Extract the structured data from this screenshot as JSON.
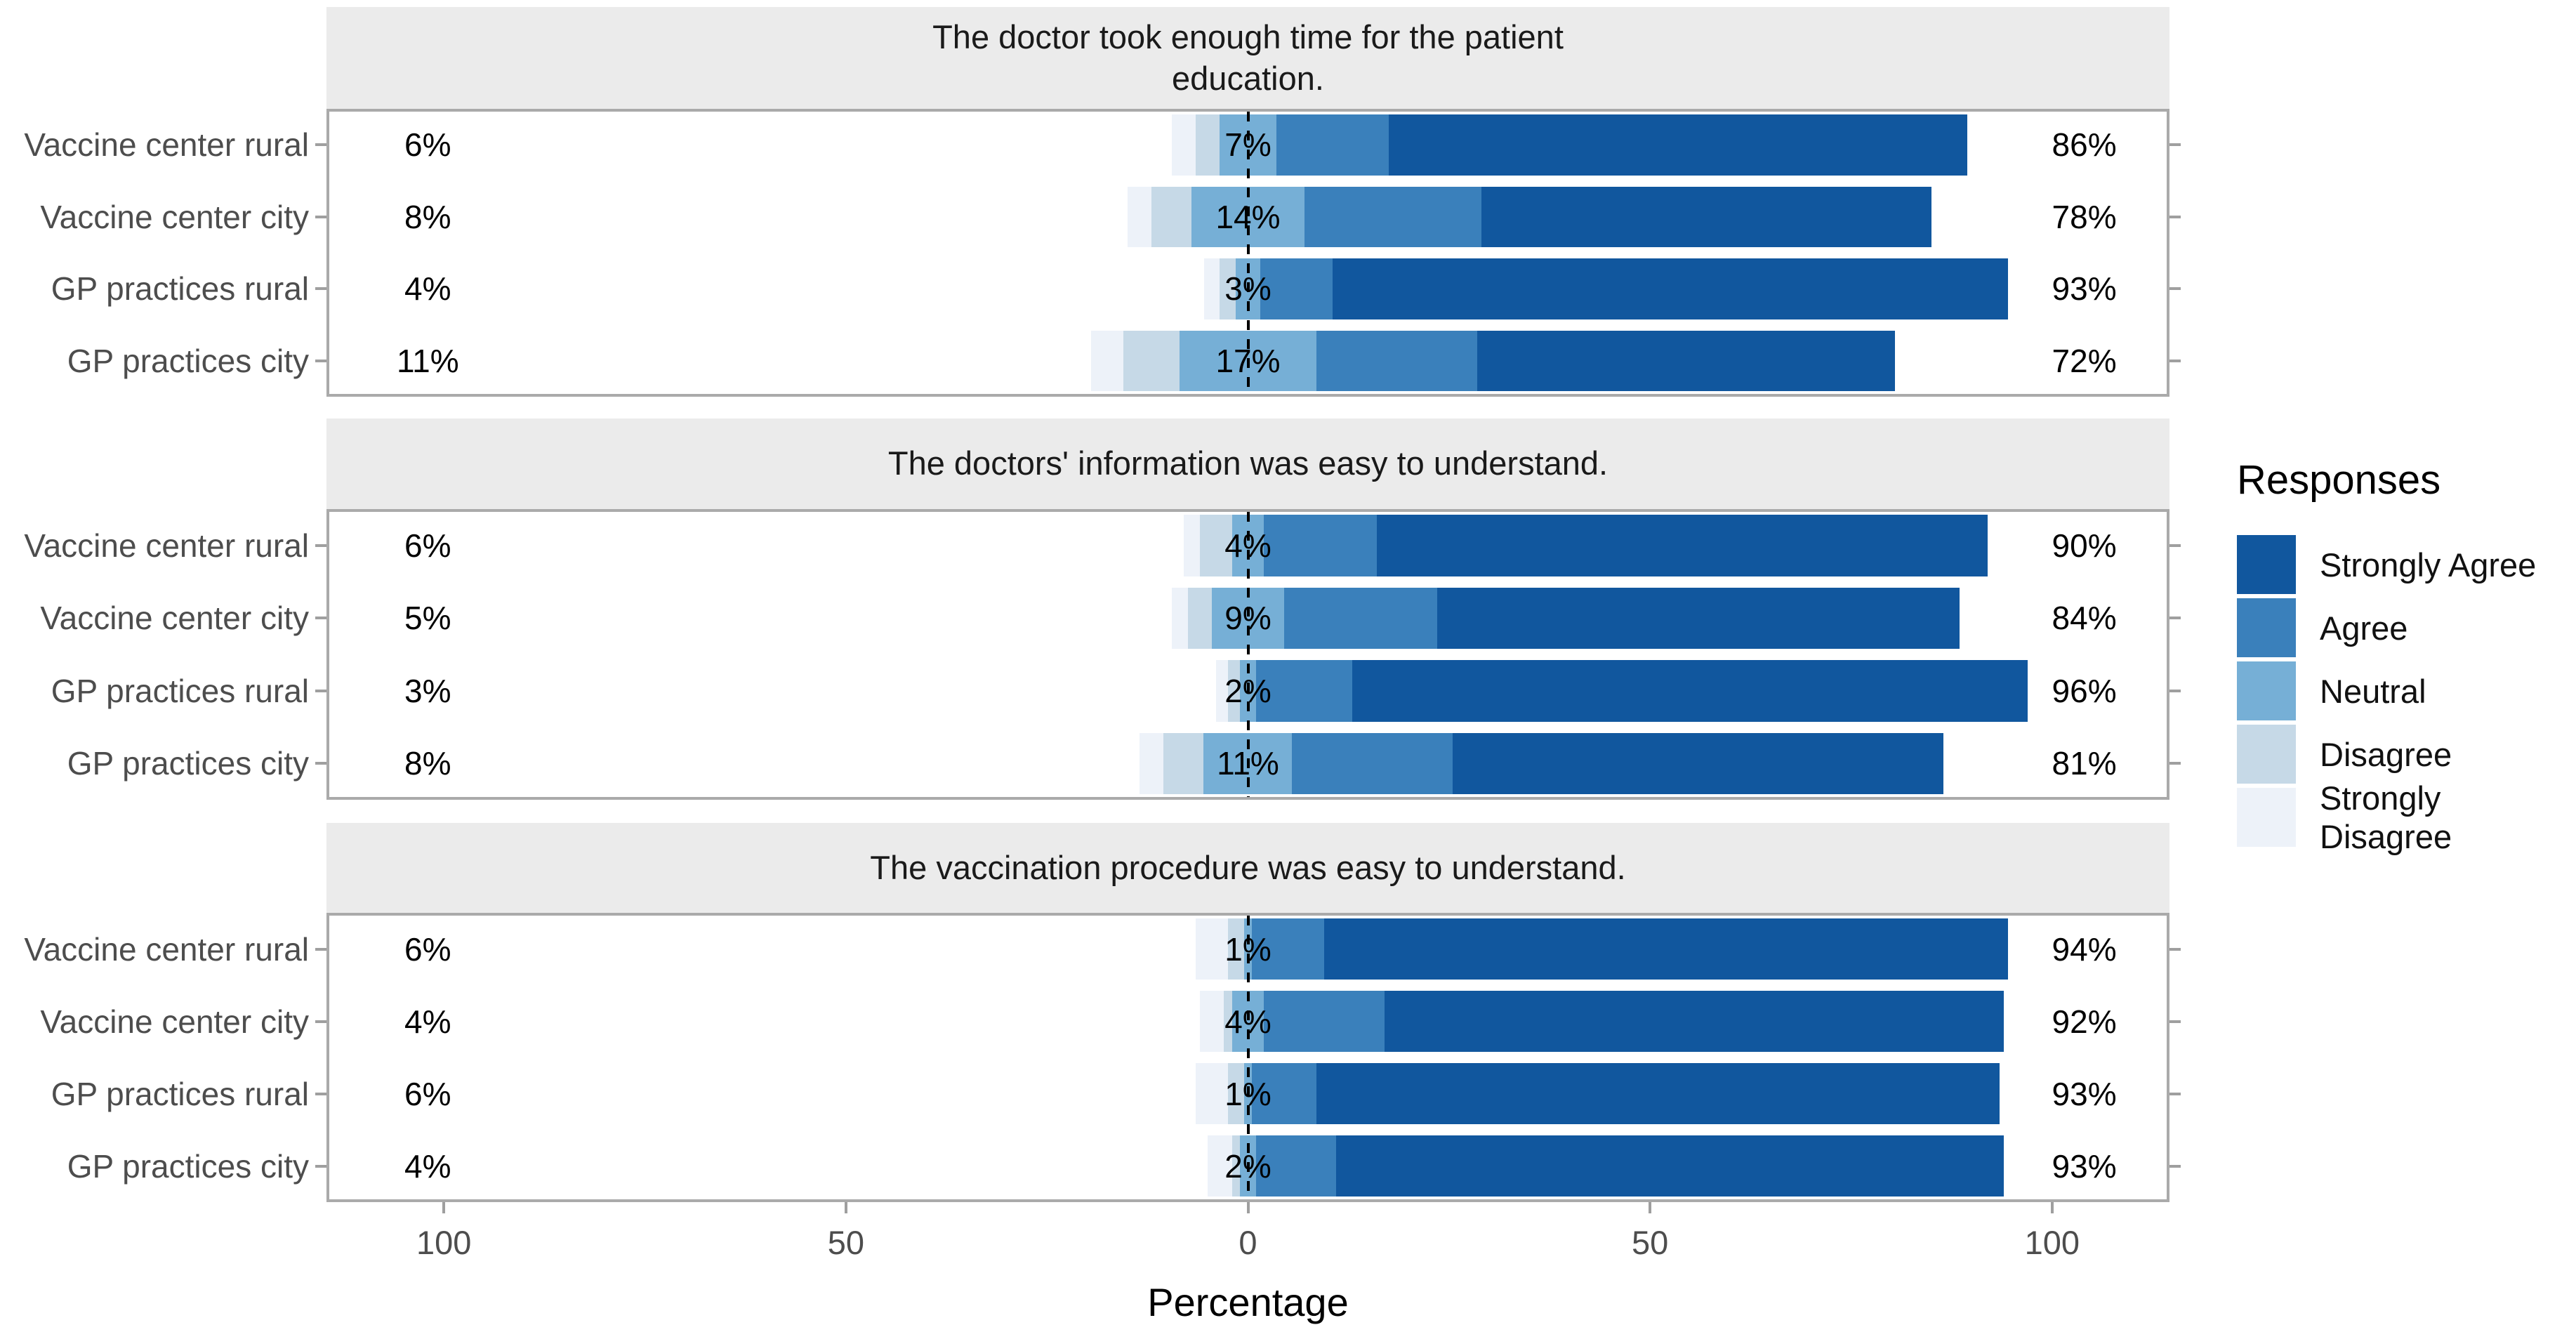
{
  "figure": {
    "axis": {
      "label": "Percentage",
      "ticks": [
        {
          "label": "100",
          "value": -100
        },
        {
          "label": "50",
          "value": -50
        },
        {
          "label": "0",
          "value": 0
        },
        {
          "label": "50",
          "value": 50
        },
        {
          "label": "100",
          "value": 100
        }
      ]
    },
    "legend": {
      "title": "Responses",
      "items": [
        {
          "label": "Strongly Agree",
          "color": "#11579e"
        },
        {
          "label": "Agree",
          "color": "#3a80bb"
        },
        {
          "label": "Neutral",
          "color": "#76afd6"
        },
        {
          "label": "Disagree",
          "color": "#c6d9e7"
        },
        {
          "label": "Strongly Disagree",
          "color": "#edf2f9"
        }
      ]
    },
    "colors": {
      "strip_bg": "#ebebeb",
      "panel_border": "#aaaaaa",
      "gridline": "#e4e4e4",
      "zero_line": "#000000"
    }
  },
  "chart_data": [
    {
      "type": "bar",
      "subtype": "diverging-stacked-likert",
      "title": "The doctor took enough time for the patient\neducation.",
      "categories": [
        "Vaccine center rural",
        "Vaccine center city",
        "GP practices rural",
        "GP practices city"
      ],
      "series": [
        {
          "name": "Strongly Disagree",
          "color": "#edf2f9",
          "values": [
            3,
            3,
            2,
            4
          ]
        },
        {
          "name": "Disagree",
          "color": "#c6d9e7",
          "values": [
            3,
            5,
            2,
            7
          ]
        },
        {
          "name": "Neutral",
          "color": "#76afd6",
          "values": [
            7,
            14,
            3,
            17
          ]
        },
        {
          "name": "Agree",
          "color": "#3a80bb",
          "values": [
            14,
            22,
            9,
            20
          ]
        },
        {
          "name": "Strongly Agree",
          "color": "#11579e",
          "values": [
            72,
            56,
            84,
            52
          ]
        }
      ],
      "totals": {
        "disagree": [
          "6%",
          "8%",
          "4%",
          "11%"
        ],
        "neutral": [
          "7%",
          "14%",
          "3%",
          "17%"
        ],
        "agree": [
          "86%",
          "78%",
          "93%",
          "72%"
        ]
      },
      "xlabel": "Percentage",
      "xlim": [
        -114.6,
        114.6
      ],
      "xticks": [
        -100,
        -50,
        0,
        50,
        100
      ],
      "grid": "light"
    },
    {
      "type": "bar",
      "subtype": "diverging-stacked-likert",
      "title": "The doctors' information was easy to understand.",
      "categories": [
        "Vaccine center rural",
        "Vaccine center city",
        "GP practices rural",
        "GP practices city"
      ],
      "series": [
        {
          "name": "Strongly Disagree",
          "color": "#edf2f9",
          "values": [
            2,
            2,
            1.5,
            3
          ]
        },
        {
          "name": "Disagree",
          "color": "#c6d9e7",
          "values": [
            4,
            3,
            1.5,
            5
          ]
        },
        {
          "name": "Neutral",
          "color": "#76afd6",
          "values": [
            4,
            9,
            2,
            11
          ]
        },
        {
          "name": "Agree",
          "color": "#3a80bb",
          "values": [
            14,
            19,
            12,
            20
          ]
        },
        {
          "name": "Strongly Agree",
          "color": "#11579e",
          "values": [
            76,
            65,
            84,
            61
          ]
        }
      ],
      "totals": {
        "disagree": [
          "6%",
          "5%",
          "3%",
          "8%"
        ],
        "neutral": [
          "4%",
          "9%",
          "2%",
          "11%"
        ],
        "agree": [
          "90%",
          "84%",
          "96%",
          "81%"
        ]
      },
      "xlabel": "Percentage",
      "xlim": [
        -114.6,
        114.6
      ],
      "xticks": [
        -100,
        -50,
        0,
        50,
        100
      ],
      "grid": "light"
    },
    {
      "type": "bar",
      "subtype": "diverging-stacked-likert",
      "title": "The vaccination procedure was easy to understand.",
      "categories": [
        "Vaccine center rural",
        "Vaccine center city",
        "GP practices rural",
        "GP practices city"
      ],
      "series": [
        {
          "name": "Strongly Disagree",
          "color": "#edf2f9",
          "values": [
            4,
            3,
            4,
            3
          ]
        },
        {
          "name": "Disagree",
          "color": "#c6d9e7",
          "values": [
            2,
            1,
            2,
            1
          ]
        },
        {
          "name": "Neutral",
          "color": "#76afd6",
          "values": [
            1,
            4,
            1,
            2
          ]
        },
        {
          "name": "Agree",
          "color": "#3a80bb",
          "values": [
            9,
            15,
            8,
            10
          ]
        },
        {
          "name": "Strongly Agree",
          "color": "#11579e",
          "values": [
            85,
            77,
            85,
            83
          ]
        }
      ],
      "totals": {
        "disagree": [
          "6%",
          "4%",
          "6%",
          "4%"
        ],
        "neutral": [
          "1%",
          "4%",
          "1%",
          "2%"
        ],
        "agree": [
          "94%",
          "92%",
          "93%",
          "93%"
        ]
      },
      "xlabel": "Percentage",
      "xlim": [
        -114.6,
        114.6
      ],
      "xticks": [
        -100,
        -50,
        0,
        50,
        100
      ],
      "grid": "light"
    }
  ]
}
